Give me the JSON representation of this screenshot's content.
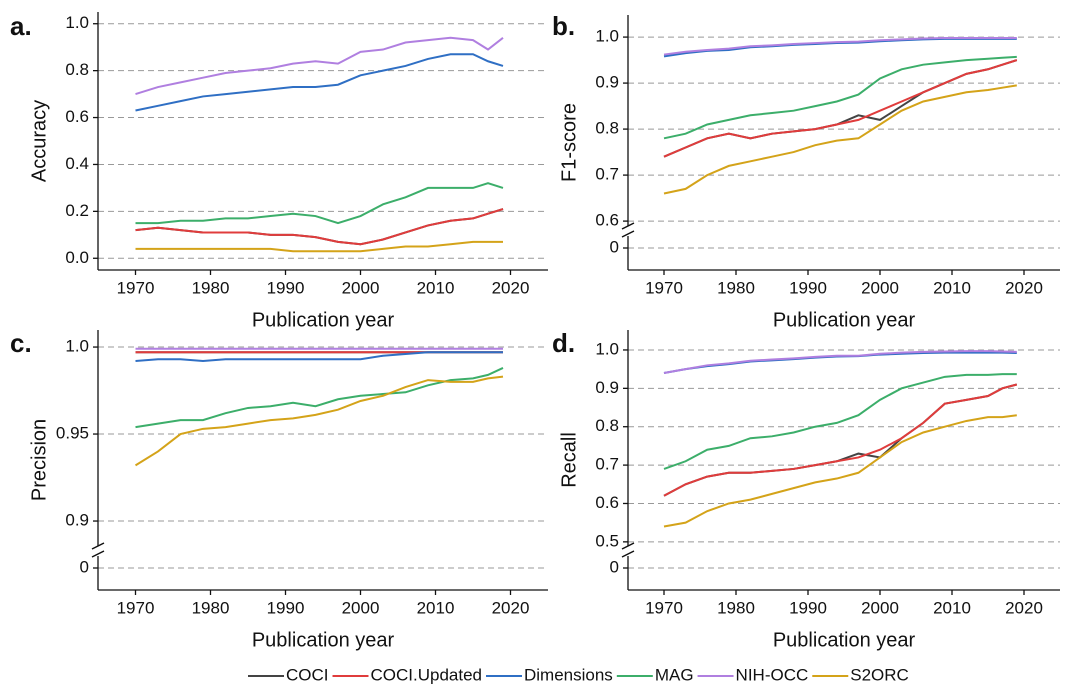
{
  "chart_data": [
    {
      "type": "line",
      "title": "a.",
      "xlabel": "Publication year",
      "ylabel": "Accuracy",
      "x": [
        1970,
        1973,
        1976,
        1979,
        1982,
        1985,
        1988,
        1991,
        1994,
        1997,
        2000,
        2003,
        2006,
        2009,
        2012,
        2015,
        2017,
        2019
      ],
      "xlim": [
        1965,
        2025
      ],
      "xticks": [
        1970,
        1980,
        1990,
        2000,
        2010,
        2020
      ],
      "ylim": [
        -0.05,
        1.05
      ],
      "yticks": [
        {
          "value": 0,
          "label": "0.0"
        },
        0.2,
        0.4,
        0.6,
        0.8,
        {
          "value": 1,
          "label": "1.0"
        }
      ],
      "grid": true,
      "series": [
        {
          "values": [
            0.12,
            0.13,
            0.12,
            0.11,
            0.11,
            0.11,
            0.1,
            0.1,
            0.09,
            0.07,
            0.06,
            0.08,
            0.11,
            0.14,
            0.16,
            0.17,
            0.19,
            0.21
          ]
        },
        {
          "values": [
            0.12,
            0.13,
            0.12,
            0.11,
            0.11,
            0.11,
            0.1,
            0.1,
            0.09,
            0.07,
            0.06,
            0.08,
            0.11,
            0.14,
            0.16,
            0.17,
            0.19,
            0.21
          ]
        },
        {
          "values": [
            0.63,
            0.65,
            0.67,
            0.69,
            0.7,
            0.71,
            0.72,
            0.73,
            0.73,
            0.74,
            0.78,
            0.8,
            0.82,
            0.85,
            0.87,
            0.87,
            0.84,
            0.82
          ]
        },
        {
          "values": [
            0.15,
            0.15,
            0.16,
            0.16,
            0.17,
            0.17,
            0.18,
            0.19,
            0.18,
            0.15,
            0.18,
            0.23,
            0.26,
            0.3,
            0.3,
            0.3,
            0.32,
            0.3
          ]
        },
        {
          "values": [
            0.7,
            0.73,
            0.75,
            0.77,
            0.79,
            0.8,
            0.81,
            0.83,
            0.84,
            0.83,
            0.88,
            0.89,
            0.92,
            0.93,
            0.94,
            0.93,
            0.89,
            0.94
          ]
        },
        {
          "values": [
            0.04,
            0.04,
            0.04,
            0.04,
            0.04,
            0.04,
            0.04,
            0.03,
            0.03,
            0.03,
            0.03,
            0.04,
            0.05,
            0.05,
            0.06,
            0.07,
            0.07,
            0.07
          ]
        }
      ]
    },
    {
      "type": "line",
      "title": "b.",
      "xlabel": "Publication year",
      "ylabel": "F1-score",
      "x": [
        1970,
        1973,
        1976,
        1979,
        1982,
        1985,
        1988,
        1991,
        1994,
        1997,
        2000,
        2003,
        2006,
        2009,
        2012,
        2015,
        2017,
        2019
      ],
      "xlim": [
        1965,
        2025
      ],
      "xticks": [
        1970,
        1980,
        1990,
        2000,
        2010,
        2020
      ],
      "ylim": [
        0.585,
        1.048
      ],
      "yticks": [
        0.6,
        0.7,
        0.8,
        0.9,
        {
          "value": 1,
          "label": "1.0"
        }
      ],
      "axis_break_tick": 0,
      "grid": true,
      "series": [
        {
          "values": [
            0.74,
            0.76,
            0.78,
            0.79,
            0.78,
            0.79,
            0.795,
            0.8,
            0.81,
            0.83,
            0.82,
            0.85,
            0.88,
            0.9,
            0.92,
            0.93,
            0.94,
            0.95
          ]
        },
        {
          "values": [
            0.74,
            0.76,
            0.78,
            0.79,
            0.78,
            0.79,
            0.795,
            0.8,
            0.81,
            0.82,
            0.84,
            0.86,
            0.88,
            0.9,
            0.92,
            0.93,
            0.94,
            0.95
          ]
        },
        {
          "values": [
            0.958,
            0.965,
            0.97,
            0.972,
            0.978,
            0.98,
            0.983,
            0.985,
            0.987,
            0.988,
            0.991,
            0.993,
            0.995,
            0.996,
            0.996,
            0.996,
            0.996,
            0.996
          ]
        },
        {
          "values": [
            0.78,
            0.79,
            0.81,
            0.82,
            0.83,
            0.835,
            0.84,
            0.85,
            0.86,
            0.875,
            0.91,
            0.93,
            0.94,
            0.945,
            0.95,
            0.953,
            0.955,
            0.957
          ]
        },
        {
          "values": [
            0.962,
            0.968,
            0.972,
            0.975,
            0.98,
            0.982,
            0.985,
            0.987,
            0.989,
            0.99,
            0.993,
            0.995,
            0.997,
            0.998,
            0.998,
            0.998,
            0.998,
            0.998
          ]
        },
        {
          "values": [
            0.66,
            0.67,
            0.7,
            0.72,
            0.73,
            0.74,
            0.75,
            0.765,
            0.775,
            0.78,
            0.81,
            0.84,
            0.86,
            0.87,
            0.88,
            0.885,
            0.89,
            0.895
          ]
        }
      ]
    },
    {
      "type": "line",
      "title": "c.",
      "xlabel": "Publication year",
      "ylabel": "Precision",
      "x": [
        1970,
        1973,
        1976,
        1979,
        1982,
        1985,
        1988,
        1991,
        1994,
        1997,
        2000,
        2003,
        2006,
        2009,
        2012,
        2015,
        2017,
        2019
      ],
      "xlim": [
        1965,
        2025
      ],
      "xticks": [
        1970,
        1980,
        1990,
        2000,
        2010,
        2020
      ],
      "ylim": [
        0.8845,
        1.0098
      ],
      "yticks": [
        0.9,
        0.95,
        {
          "value": 1,
          "label": "1.0"
        }
      ],
      "axis_break_tick": 0,
      "grid": true,
      "series": [
        {
          "values": [
            0.997,
            0.997,
            0.997,
            0.997,
            0.997,
            0.997,
            0.997,
            0.997,
            0.997,
            0.997,
            0.997,
            0.997,
            0.997,
            0.997,
            0.997,
            0.997,
            0.997,
            0.997
          ]
        },
        {
          "values": [
            0.997,
            0.997,
            0.997,
            0.997,
            0.997,
            0.997,
            0.997,
            0.997,
            0.997,
            0.997,
            0.997,
            0.997,
            0.997,
            0.997,
            0.997,
            0.997,
            0.997,
            0.997
          ]
        },
        {
          "values": [
            0.992,
            0.993,
            0.993,
            0.992,
            0.993,
            0.993,
            0.993,
            0.993,
            0.993,
            0.993,
            0.993,
            0.995,
            0.996,
            0.997,
            0.997,
            0.997,
            0.997,
            0.997
          ]
        },
        {
          "values": [
            0.954,
            0.956,
            0.958,
            0.958,
            0.962,
            0.965,
            0.966,
            0.968,
            0.966,
            0.97,
            0.972,
            0.973,
            0.974,
            0.978,
            0.981,
            0.982,
            0.984,
            0.988
          ]
        },
        {
          "values": [
            0.999,
            0.999,
            0.999,
            0.999,
            0.999,
            0.999,
            0.999,
            0.999,
            0.999,
            0.999,
            0.999,
            0.999,
            0.999,
            0.999,
            0.999,
            0.999,
            0.999,
            0.999
          ]
        },
        {
          "values": [
            0.932,
            0.94,
            0.95,
            0.953,
            0.954,
            0.956,
            0.958,
            0.959,
            0.961,
            0.964,
            0.969,
            0.972,
            0.977,
            0.981,
            0.98,
            0.98,
            0.982,
            0.983
          ]
        }
      ]
    },
    {
      "type": "line",
      "title": "d.",
      "xlabel": "Publication year",
      "ylabel": "Recall",
      "x": [
        1970,
        1973,
        1976,
        1979,
        1982,
        1985,
        1988,
        1991,
        1994,
        1997,
        2000,
        2003,
        2006,
        2009,
        2012,
        2015,
        2017,
        2019
      ],
      "xlim": [
        1965,
        2025
      ],
      "xticks": [
        1970,
        1980,
        1990,
        2000,
        2010,
        2020
      ],
      "ylim": [
        0.484,
        1.052
      ],
      "yticks": [
        0.5,
        0.6,
        0.7,
        0.8,
        0.9,
        {
          "value": 1,
          "label": "1.0"
        }
      ],
      "axis_break_tick": 0,
      "grid": true,
      "series": [
        {
          "values": [
            0.62,
            0.65,
            0.67,
            0.68,
            0.68,
            0.685,
            0.69,
            0.7,
            0.71,
            0.73,
            0.72,
            0.77,
            0.81,
            0.86,
            0.87,
            0.88,
            0.9,
            0.91
          ]
        },
        {
          "values": [
            0.62,
            0.65,
            0.67,
            0.68,
            0.68,
            0.685,
            0.69,
            0.7,
            0.71,
            0.72,
            0.74,
            0.77,
            0.81,
            0.86,
            0.87,
            0.88,
            0.9,
            0.91
          ]
        },
        {
          "values": [
            0.94,
            0.95,
            0.958,
            0.963,
            0.97,
            0.973,
            0.976,
            0.98,
            0.983,
            0.984,
            0.988,
            0.99,
            0.992,
            0.993,
            0.993,
            0.993,
            0.993,
            0.992
          ]
        },
        {
          "values": [
            0.69,
            0.71,
            0.74,
            0.75,
            0.77,
            0.775,
            0.785,
            0.8,
            0.81,
            0.83,
            0.87,
            0.9,
            0.915,
            0.93,
            0.935,
            0.935,
            0.937,
            0.937
          ]
        },
        {
          "values": [
            0.94,
            0.95,
            0.96,
            0.965,
            0.972,
            0.975,
            0.978,
            0.982,
            0.985,
            0.985,
            0.99,
            0.993,
            0.995,
            0.996,
            0.997,
            0.997,
            0.996,
            0.995
          ]
        },
        {
          "values": [
            0.54,
            0.55,
            0.58,
            0.6,
            0.61,
            0.625,
            0.64,
            0.655,
            0.665,
            0.68,
            0.72,
            0.76,
            0.785,
            0.8,
            0.815,
            0.825,
            0.825,
            0.83
          ]
        }
      ]
    }
  ],
  "legend": [
    {
      "name": "COCI",
      "color": "#444444"
    },
    {
      "name": "COCI.Updated",
      "color": "#e03c3c"
    },
    {
      "name": "Dimensions",
      "color": "#2f6fc4"
    },
    {
      "name": "MAG",
      "color": "#3cae6a"
    },
    {
      "name": "NIH-OCC",
      "color": "#b07fe0"
    },
    {
      "name": "S2ORC",
      "color": "#d4a319"
    }
  ]
}
